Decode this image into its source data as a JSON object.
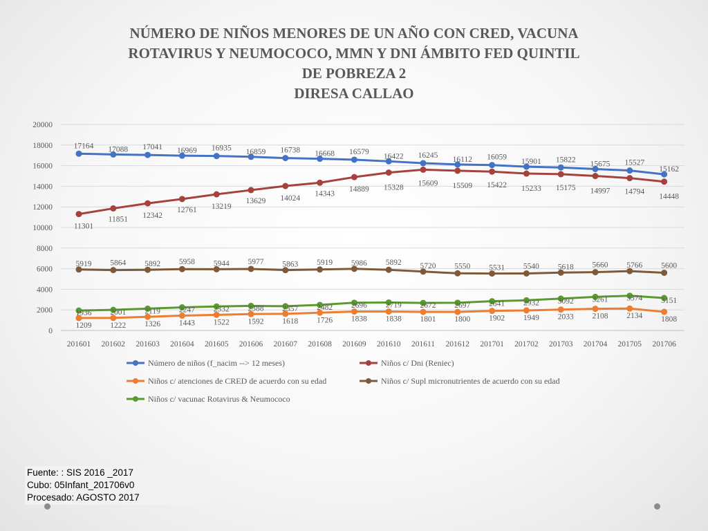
{
  "title": {
    "line1": "NÚMERO DE NIÑOS MENORES DE UN AÑO CON CRED, VACUNA",
    "line2": "ROTAVIRUS Y NEUMOCOCO, MMN Y DNI  ÁMBITO FED QUINTIL",
    "line3": "DE POBREZA 2",
    "line4": "DIRESA CALLAO"
  },
  "source": {
    "line1": "Fuente: : SIS 2016 _2017",
    "line2": "Cubo: 05Infant_201706v0",
    "line3": "Procesado: AGOSTO 2017"
  },
  "colors": {
    "blue": "#4472C4",
    "red": "#A5423E",
    "orange": "#ED7D31",
    "brown": "#7F5A3A",
    "green": "#5A9A2E",
    "grid": "#D9D9D9",
    "text": "#595959"
  },
  "chart_data": {
    "type": "line",
    "ylim": [
      0,
      20000
    ],
    "yticks": [
      0,
      2000,
      4000,
      6000,
      8000,
      10000,
      12000,
      14000,
      16000,
      18000,
      20000
    ],
    "grid": true,
    "legend_position": "bottom",
    "categories": [
      "201601",
      "201602",
      "201603",
      "201604",
      "201605",
      "201606",
      "201607",
      "201608",
      "201609",
      "201610",
      "201611",
      "201612",
      "201701",
      "201702",
      "201703",
      "201704",
      "201705",
      "201706"
    ],
    "series": [
      {
        "name": "Número de niños (f_nacim --> 12 meses)",
        "color": "#4472C4",
        "values": [
          17164,
          17088,
          17041,
          16969,
          16935,
          16859,
          16738,
          16668,
          16579,
          16422,
          16245,
          16112,
          16059,
          15901,
          15822,
          15675,
          15527,
          15162
        ]
      },
      {
        "name": "Niños c/ Dni (Reniec)",
        "color": "#A5423E",
        "values": [
          11301,
          11851,
          12342,
          12761,
          13219,
          13629,
          14024,
          14343,
          14889,
          15328,
          15609,
          15509,
          15422,
          15233,
          15175,
          14997,
          14794,
          14448
        ]
      },
      {
        "name": "Niños c/ atenciones de CRED de acuerdo con su edad",
        "color": "#ED7D31",
        "values": [
          1209,
          1222,
          1326,
          1443,
          1522,
          1592,
          1618,
          1726,
          1838,
          1838,
          1801,
          1800,
          1902,
          1949,
          2033,
          2108,
          2134,
          1808
        ]
      },
      {
        "name": "Niños c/ Supl micronutrientes de acuerdo con su edad",
        "color": "#7F5A3A",
        "values": [
          5919,
          5864,
          5892,
          5958,
          5944,
          5977,
          5863,
          5919,
          5986,
          5892,
          5720,
          5550,
          5531,
          5540,
          5618,
          5660,
          5766,
          5600
        ]
      },
      {
        "name": "Niños c/ vacunac Rotavirus & Neumococo",
        "color": "#5A9A2E",
        "values": [
          1936,
          2001,
          2119,
          2247,
          2332,
          2388,
          2357,
          2482,
          2696,
          2719,
          2672,
          2697,
          2841,
          2932,
          3092,
          3261,
          3374,
          3151
        ]
      }
    ]
  }
}
